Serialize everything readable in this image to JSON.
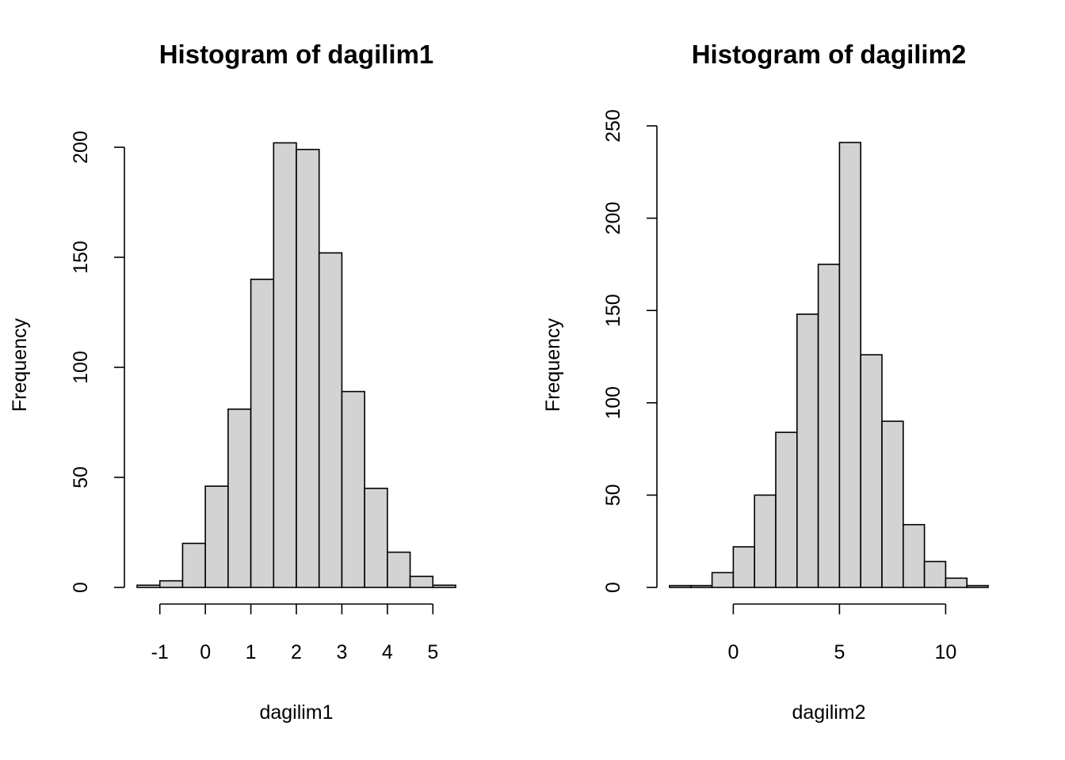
{
  "chart_data": [
    {
      "type": "bar",
      "title": "Histogram of dagilim1",
      "xlabel": "dagilim1",
      "ylabel": "Frequency",
      "bin_edges": [
        -1.5,
        -1.0,
        -0.5,
        0.0,
        0.5,
        1.0,
        1.5,
        2.0,
        2.5,
        3.0,
        3.5,
        4.0,
        4.5,
        5.0,
        5.5
      ],
      "values": [
        1,
        3,
        20,
        46,
        81,
        140,
        202,
        199,
        152,
        89,
        45,
        16,
        5,
        1
      ],
      "x_ticks": [
        -1,
        0,
        1,
        2,
        3,
        4,
        5
      ],
      "x_tick_labels": [
        "-1",
        "0",
        "1",
        "2",
        "3",
        "4",
        "5"
      ],
      "y_ticks": [
        0,
        50,
        100,
        150,
        200
      ],
      "y_tick_labels": [
        "0",
        "50",
        "100",
        "150",
        "200"
      ],
      "xlim": [
        -1.5,
        5.5
      ],
      "ylim": [
        0,
        202
      ],
      "grid": false,
      "colors": {
        "bar_fill": "#d3d3d3",
        "bar_stroke": "#000000"
      }
    },
    {
      "type": "bar",
      "title": "Histogram of dagilim2",
      "xlabel": "dagilim2",
      "ylabel": "Frequency",
      "bin_edges": [
        -3,
        -2,
        -1,
        0,
        1,
        2,
        3,
        4,
        5,
        6,
        7,
        8,
        9,
        10,
        11,
        12
      ],
      "values": [
        1,
        1,
        8,
        22,
        50,
        84,
        148,
        175,
        241,
        126,
        90,
        34,
        14,
        5,
        1
      ],
      "x_ticks": [
        0,
        5,
        10
      ],
      "x_tick_labels": [
        "0",
        "5",
        "10"
      ],
      "y_ticks": [
        0,
        50,
        100,
        150,
        200,
        250
      ],
      "y_tick_labels": [
        "0",
        "50",
        "100",
        "150",
        "200",
        "250"
      ],
      "xlim": [
        -3,
        12
      ],
      "ylim": [
        0,
        250
      ],
      "grid": false,
      "colors": {
        "bar_fill": "#d3d3d3",
        "bar_stroke": "#000000"
      }
    }
  ]
}
